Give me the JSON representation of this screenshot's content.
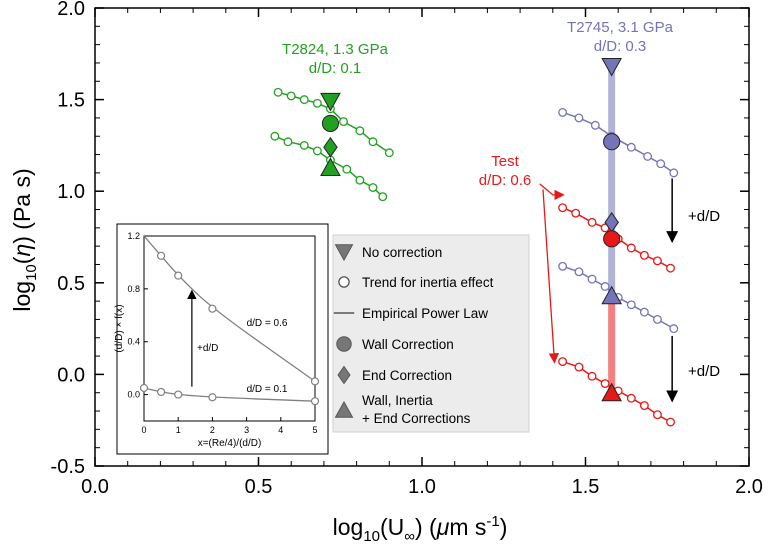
{
  "chart_data": {
    "type": "scatter",
    "xlabel": "log10(U∞) (μm s-1)",
    "ylabel": "log10(η) (Pa s)",
    "xlim": [
      0.0,
      2.0
    ],
    "ylim": [
      -0.5,
      2.0
    ],
    "x_ticks": [
      "0.0",
      "0.5",
      "1.0",
      "1.5",
      "2.0"
    ],
    "y_ticks": [
      "-0.5",
      "0.0",
      "0.5",
      "1.0",
      "1.5",
      "2.0"
    ],
    "colors": {
      "green": "#22a022",
      "purple": "#7474b8",
      "red": "#e81818",
      "gray": "#808080"
    },
    "annotations": {
      "green_label_1": "T2824, 1.3 GPa",
      "green_label_2": "d/D: 0.1",
      "purple_label_1": "T2745, 3.1 GPa",
      "purple_label_2": "d/D: 0.3",
      "red_label_1": "Test",
      "red_label_2": "d/D: 0.6",
      "arrow_label_1": "+d/D",
      "arrow_label_2": "+d/D"
    },
    "series": [
      {
        "name": "T2824, 1.3 GPa",
        "color": "green",
        "marker": "circle-open",
        "lines": [
          [
            [
              0.56,
              1.54
            ],
            [
              0.6,
              1.52
            ],
            [
              0.64,
              1.5
            ],
            [
              0.68,
              1.48
            ],
            [
              0.72,
              1.45
            ],
            [
              0.76,
              1.38
            ],
            [
              0.81,
              1.33
            ],
            [
              0.85,
              1.27
            ],
            [
              0.9,
              1.21
            ]
          ],
          [
            [
              0.55,
              1.3
            ],
            [
              0.59,
              1.27
            ],
            [
              0.64,
              1.25
            ],
            [
              0.68,
              1.22
            ],
            [
              0.72,
              1.17
            ],
            [
              0.77,
              1.12
            ],
            [
              0.81,
              1.06
            ],
            [
              0.85,
              1.02
            ],
            [
              0.88,
              0.97
            ]
          ]
        ],
        "points": [
          {
            "label": "No correction",
            "marker": "down-triangle",
            "x": 0.72,
            "y": 1.49
          },
          {
            "label": "Wall Correction",
            "marker": "circle",
            "x": 0.72,
            "y": 1.37
          },
          {
            "label": "End Correction",
            "marker": "diamond",
            "x": 0.72,
            "y": 1.24
          },
          {
            "label": "Wall, Inertia + End Corrections",
            "marker": "up-triangle",
            "x": 0.72,
            "y": 1.13
          }
        ]
      },
      {
        "name": "T2745, 3.1 GPa",
        "color": "purple",
        "marker": "circle-open",
        "lines": [
          [
            [
              1.43,
              1.43
            ],
            [
              1.48,
              1.4
            ],
            [
              1.53,
              1.36
            ],
            [
              1.58,
              1.3
            ],
            [
              1.64,
              1.24
            ],
            [
              1.69,
              1.19
            ],
            [
              1.73,
              1.15
            ],
            [
              1.77,
              1.1
            ]
          ],
          [
            [
              1.43,
              0.59
            ],
            [
              1.48,
              0.56
            ],
            [
              1.52,
              0.52
            ],
            [
              1.56,
              0.48
            ],
            [
              1.6,
              0.42
            ],
            [
              1.64,
              0.38
            ],
            [
              1.68,
              0.34
            ],
            [
              1.72,
              0.3
            ],
            [
              1.77,
              0.25
            ]
          ]
        ],
        "points": [
          {
            "label": "No correction",
            "marker": "down-triangle",
            "x": 1.58,
            "y": 1.68
          },
          {
            "label": "Wall Correction",
            "marker": "circle",
            "x": 1.58,
            "y": 1.27
          },
          {
            "label": "End Correction",
            "marker": "diamond",
            "x": 1.58,
            "y": 0.83
          },
          {
            "label": "Wall, Inertia + End Corrections",
            "marker": "up-triangle",
            "x": 1.58,
            "y": 0.43
          }
        ],
        "bar": [
          0.43,
          1.68
        ]
      },
      {
        "name": "Test, d/D: 0.6",
        "color": "red",
        "marker": "circle-open",
        "lines": [
          [
            [
              1.43,
              0.91
            ],
            [
              1.47,
              0.88
            ],
            [
              1.52,
              0.83
            ],
            [
              1.56,
              0.8
            ],
            [
              1.6,
              0.74
            ],
            [
              1.64,
              0.69
            ],
            [
              1.68,
              0.65
            ],
            [
              1.72,
              0.62
            ],
            [
              1.76,
              0.58
            ]
          ],
          [
            [
              1.43,
              0.07
            ],
            [
              1.48,
              0.04
            ],
            [
              1.52,
              -0.01
            ],
            [
              1.56,
              -0.05
            ],
            [
              1.6,
              -0.09
            ],
            [
              1.64,
              -0.13
            ],
            [
              1.68,
              -0.17
            ],
            [
              1.72,
              -0.22
            ],
            [
              1.76,
              -0.26
            ]
          ]
        ],
        "points": [
          {
            "label": "Wall Correction",
            "marker": "circle",
            "x": 1.58,
            "y": 0.74
          },
          {
            "label": "Wall, Inertia + End Corrections",
            "marker": "up-triangle",
            "x": 1.58,
            "y": -0.1
          }
        ],
        "bar": [
          -0.1,
          0.43
        ]
      }
    ],
    "legend": {
      "placement": "center",
      "items": [
        {
          "label": "No correction",
          "symbol": "down-triangle"
        },
        {
          "label": "Trend for inertia effect",
          "symbol": "circle-open"
        },
        {
          "label": "Empirical Power Law",
          "symbol": "line"
        },
        {
          "label": "Wall Correction",
          "symbol": "circle"
        },
        {
          "label": "End Correction",
          "symbol": "diamond"
        },
        {
          "label": "Wall, Inertia",
          "label2": "+ End Corrections",
          "symbol": "up-triangle"
        }
      ]
    },
    "inset": {
      "type": "scatter",
      "xlabel": "x=(Re/4)/(d/D)",
      "ylabel": "(d/D) × f(x)",
      "xlim": [
        0,
        5
      ],
      "ylim": [
        -0.2,
        1.2
      ],
      "x_ticks": [
        "0",
        "1",
        "2",
        "3",
        "4",
        "5"
      ],
      "y_ticks": [
        "0.0",
        "0.4",
        "0.8",
        "1.2"
      ],
      "series": [
        {
          "name": "d/D = 0.6",
          "x": [
            0,
            0.5,
            1.0,
            2.0,
            5.0
          ],
          "y": [
            1.2,
            1.05,
            0.9,
            0.65,
            0.1
          ]
        },
        {
          "name": "d/D = 0.1",
          "x": [
            0,
            0.5,
            1.0,
            2.0,
            5.0
          ],
          "y": [
            0.05,
            0.02,
            0.0,
            -0.02,
            -0.05
          ]
        }
      ],
      "arrow_label": "+d/D"
    }
  }
}
